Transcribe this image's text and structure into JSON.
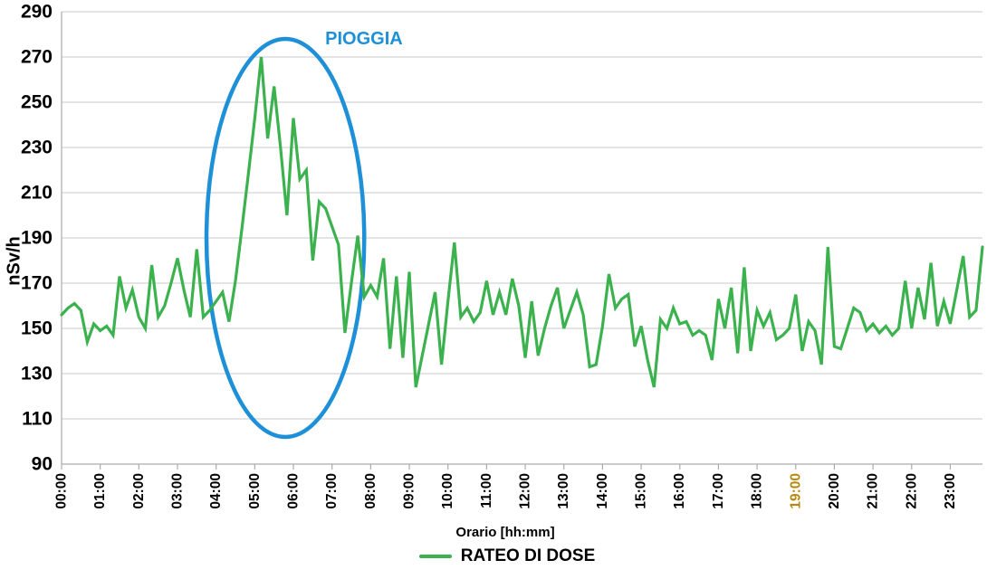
{
  "page": {
    "background": "#FFFFFF"
  },
  "colors": {
    "line_green": "#3BB24D",
    "annotation_blue": "#1E90D8",
    "grid_gray": "#C9C9C9",
    "axis_gray": "#ABABAB",
    "text_black": "#000000",
    "highlight_amber": "#B8860B"
  },
  "chart_data": {
    "type": "line",
    "title": "",
    "xlabel": "Orario [hh:mm]",
    "ylabel": "nSv/h",
    "ylim": [
      90,
      290
    ],
    "yticks": [
      90,
      110,
      130,
      150,
      170,
      190,
      210,
      230,
      250,
      270,
      290
    ],
    "grid": "horizontal",
    "xticks": [
      "00:00",
      "01:00",
      "02:00",
      "03:00",
      "04:00",
      "05:00",
      "06:00",
      "07:00",
      "08:00",
      "09:00",
      "10:00",
      "11:00",
      "12:00",
      "13:00",
      "14:00",
      "15:00",
      "16:00",
      "17:00",
      "18:00",
      "19:00",
      "20:00",
      "21:00",
      "22:00",
      "23:00"
    ],
    "highlighted_xtick": {
      "label": "19:00",
      "color": "#B8860B"
    },
    "sampling": {
      "start_time": "00:00",
      "interval_minutes": 10,
      "end_time": "23:50"
    },
    "series": [
      {
        "name": "RATEO DI DOSE",
        "color": "#3BB24D",
        "values": [
          156,
          159,
          161,
          158,
          144,
          152,
          149,
          151,
          147,
          173,
          159,
          167,
          155,
          150,
          178,
          155,
          160,
          170,
          181,
          167,
          155,
          185,
          155,
          158,
          162,
          166,
          153,
          171,
          194,
          218,
          243,
          270,
          234,
          257,
          230,
          200,
          243,
          216,
          220,
          180,
          206,
          203,
          195,
          187,
          148,
          170,
          191,
          164,
          169,
          164,
          181,
          141,
          173,
          137,
          175,
          124,
          138,
          152,
          166,
          134,
          162,
          188,
          155,
          159,
          153,
          157,
          171,
          156,
          166,
          156,
          172,
          160,
          137,
          162,
          138,
          150,
          160,
          168,
          150,
          158,
          166,
          156,
          133,
          134,
          151,
          174,
          159,
          163,
          165,
          142,
          151,
          136,
          124,
          154,
          150,
          159,
          152,
          153,
          147,
          149,
          147,
          136,
          163,
          150,
          168,
          139,
          177,
          140,
          158,
          151,
          157,
          145,
          147,
          150,
          165,
          140,
          153,
          149,
          134,
          186,
          142,
          141,
          150,
          159,
          157,
          149,
          152,
          148,
          151,
          147,
          150,
          171,
          150,
          168,
          154,
          179,
          151,
          162,
          152,
          167,
          182,
          155,
          158,
          186
        ]
      }
    ],
    "legend": {
      "position": "bottom-center",
      "entries": [
        {
          "label": "RATEO DI DOSE",
          "color": "#3BB24D"
        }
      ]
    },
    "annotations": [
      {
        "type": "ellipse",
        "text": "PIOGGIA",
        "color": "#1E90D8",
        "time_range": [
          "03:45",
          "07:50"
        ],
        "value_range": [
          102,
          278
        ]
      }
    ]
  }
}
